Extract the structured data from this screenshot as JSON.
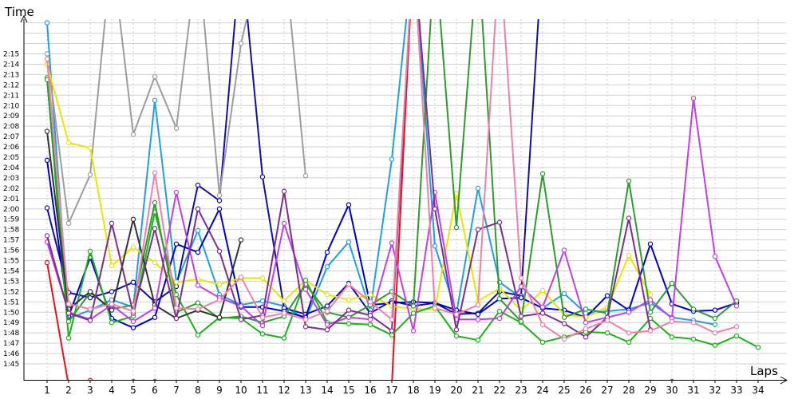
{
  "chart_data": {
    "type": "line",
    "xlabel": "Laps",
    "ylabel": "Time",
    "x_categories": [
      "1",
      "2",
      "3",
      "4",
      "5",
      "6",
      "7",
      "8",
      "9",
      "10",
      "11",
      "12",
      "13",
      "14",
      "15",
      "16",
      "17",
      "18",
      "19",
      "20",
      "21",
      "22",
      "23",
      "24",
      "25",
      "26",
      "27",
      "28",
      "29",
      "30",
      "31",
      "32",
      "33",
      "34"
    ],
    "y_ticks": [
      "1:45",
      "1:46",
      "1:47",
      "1:48",
      "1:49",
      "1:50",
      "1:51",
      "1:52",
      "1:53",
      "1:54",
      "1:55",
      "1:56",
      "1:57",
      "1:58",
      "1:59",
      "2:00",
      "2:01",
      "2:02",
      "2:03",
      "2:04",
      "2:05",
      "2:06",
      "2:07",
      "2:08",
      "2:09",
      "2:10",
      "2:11",
      "2:12",
      "2:13",
      "2:14",
      "2:15"
    ],
    "y_range_seconds": [
      104,
      138
    ],
    "grid": true,
    "series": [
      {
        "color": "#e8101a",
        "values": [
          114.8,
          102.9,
          103.4,
          102.2,
          103.3,
          103.3,
          102.5,
          101.7,
          102.0,
          102.4,
          102.7,
          102.3,
          102.5,
          102.4,
          102.5,
          101.6,
          102.9,
          145,
          null,
          102.0,
          102.8,
          101.9,
          102.3,
          101.6,
          101.6,
          102.0,
          101.8,
          102.3,
          101.7,
          103.3,
          102.0,
          101.5,
          100.7,
          101.3
        ]
      },
      {
        "color": "#1f9fe8",
        "values": [
          138,
          109.4,
          110.2,
          111.2,
          110.5,
          130.5,
          112.9,
          117.9,
          111.7,
          110.7,
          111.1,
          110.6,
          109.3,
          114.4,
          116.8,
          110.2,
          124.8,
          145,
          116.4,
          109.9,
          122.0,
          112.9,
          111.4,
          110.4,
          111.8,
          109.9,
          110.1,
          110.3,
          110.9,
          109.5,
          109.2,
          108.8,
          null,
          null
        ]
      },
      {
        "color": "#1010a8",
        "values": [
          120.1,
          111.9,
          111.4,
          112.0,
          112.9,
          111.0,
          112.5,
          122.3,
          120.8,
          145,
          123.1,
          110.4,
          109.8,
          110.6,
          112.8,
          109.9,
          111.1,
          110.6,
          110.9,
          109.8,
          109.9,
          112.0,
          111.6,
          145,
          null,
          null,
          null,
          null,
          null,
          null,
          null,
          null,
          null,
          null
        ]
      },
      {
        "color": "#0000cc",
        "values": [
          124.7,
          109.6,
          115.3,
          109.4,
          108.5,
          109.5,
          116.6,
          115.8,
          120.0,
          110.5,
          110.5,
          110.1,
          109.5,
          115.8,
          120.4,
          110.7,
          110.9,
          111.0,
          110.9,
          110.2,
          109.8,
          111.3,
          111.4,
          110.4,
          110.2,
          109.5,
          111.6,
          110.2,
          116.6,
          110.8,
          110.1,
          110.2,
          110.9,
          null
        ]
      },
      {
        "color": "#9d9d9d",
        "values": [
          135,
          118.6,
          123.3,
          145,
          127.2,
          132.8,
          127.8,
          145,
          121.3,
          136.0,
          145,
          145,
          123.2,
          null,
          null,
          null,
          null,
          null,
          null,
          null,
          null,
          null,
          null,
          null,
          null,
          null,
          null,
          null,
          null,
          null,
          null,
          null,
          null,
          null
        ]
      },
      {
        "color": "#e6e600",
        "values": [
          134.0,
          126.4,
          125.9,
          114.5,
          116.3,
          114.8,
          112.9,
          113.2,
          112.7,
          113.3,
          113.3,
          111.1,
          113.1,
          111.7,
          111.2,
          111.7,
          110.6,
          110.3,
          110.3,
          121.5,
          111.1,
          112.3,
          110.2,
          112.1,
          109.8,
          109.5,
          110.5,
          115.5,
          111.7,
          null,
          null,
          null,
          null,
          null
        ]
      },
      {
        "color": "#19b319",
        "values": [
          132.7,
          107.5,
          115.9,
          109.0,
          109.6,
          119.7,
          111.7,
          107.8,
          109.5,
          109.4,
          107.9,
          107.5,
          113.1,
          109.0,
          108.9,
          108.8,
          107.8,
          109.9,
          110.6,
          107.7,
          107.3,
          110.1,
          109.0,
          107.1,
          107.6,
          108.1,
          108.0,
          107.1,
          109.4,
          107.6,
          107.4,
          106.8,
          107.7,
          106.6
        ]
      },
      {
        "color": "#2c9c2c",
        "values": [
          132.5,
          109.1,
          111.9,
          110.3,
          110.7,
          120.6,
          110.0,
          110.9,
          109.4,
          109.6,
          109.0,
          109.6,
          112.7,
          110.0,
          109.5,
          110.7,
          112.0,
          110.6,
          145,
          118.2,
          145,
          111.3,
          109.1,
          123.4,
          109.5,
          110.3,
          109.9,
          122.7,
          110.0,
          112.8,
          110.3,
          109.4,
          111.1,
          null
        ]
      },
      {
        "color": "#333333",
        "values": [
          127.5,
          110.3,
          112.0,
          110.2,
          119.0,
          110.7,
          109.4,
          110.2,
          109.5,
          117.0,
          null,
          null,
          null,
          null,
          null,
          null,
          null,
          null,
          null,
          null,
          null,
          null,
          null,
          null,
          null,
          null,
          null,
          null,
          null,
          null,
          null,
          null,
          null,
          null
        ]
      },
      {
        "color": "#bf40e8",
        "values": [
          116.8,
          110.0,
          109.3,
          110.7,
          109.1,
          110.4,
          121.6,
          112.6,
          111.4,
          110.6,
          108.7,
          118.6,
          112.2,
          108.8,
          109.5,
          109.3,
          116.7,
          108.2,
          121.6,
          109.3,
          109.3,
          109.4,
          112.5,
          110.5,
          116.0,
          109.0,
          109.5,
          110.0,
          111.2,
          109.4,
          130.7,
          115.4,
          110.6,
          null
        ]
      },
      {
        "color": "#7d2d8e",
        "values": [
          117.4,
          109.9,
          109.2,
          118.6,
          109.9,
          118.1,
          109.4,
          120.0,
          115.9,
          109.3,
          109.7,
          121.7,
          108.6,
          108.3,
          110.2,
          109.7,
          108.2,
          145,
          120.0,
          108.3,
          118.0,
          118.7,
          109.6,
          109.9,
          108.9,
          107.6,
          109.5,
          119.1,
          108.3,
          null,
          null,
          null,
          null,
          null
        ]
      },
      {
        "color": "#f080a8",
        "values": [
          134.5,
          110.8,
          110.3,
          110.8,
          110.1,
          123.5,
          110.4,
          110.3,
          111.2,
          113.4,
          109.5,
          109.9,
          109.3,
          110.1,
          112.7,
          111.0,
          109.3,
          145,
          110.4,
          109.8,
          110.7,
          145,
          113.3,
          108.8,
          107.4,
          108.4,
          109.2,
          108.0,
          108.2,
          109.1,
          109.0,
          108.0,
          108.6,
          null
        ]
      }
    ]
  }
}
